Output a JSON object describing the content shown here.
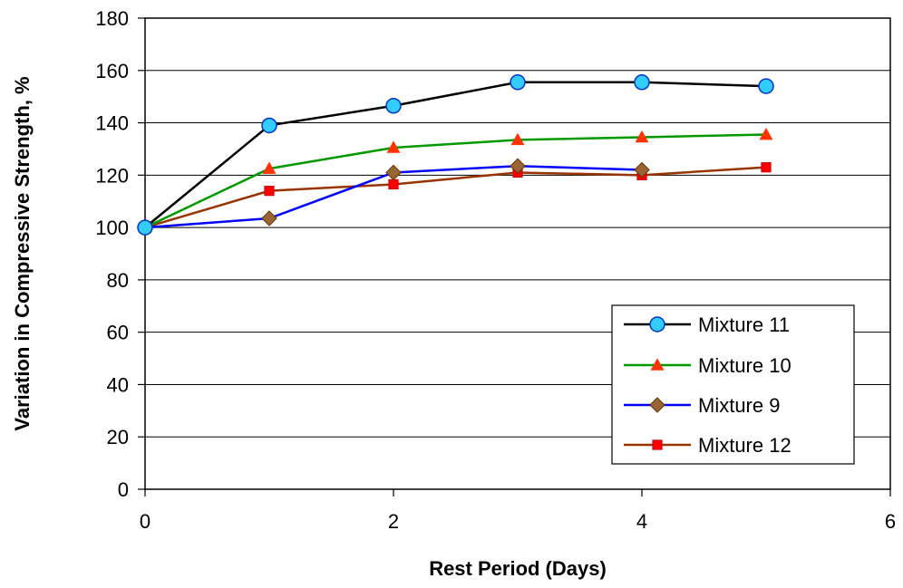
{
  "chart_data": {
    "type": "line",
    "xlabel": "Rest Period (Days)",
    "ylabel": "Variation in Compressive Strength, %",
    "xlim": [
      0,
      6
    ],
    "ylim": [
      0,
      180
    ],
    "xticks": [
      0,
      2,
      4,
      6
    ],
    "yticks": [
      0,
      20,
      40,
      60,
      80,
      100,
      120,
      140,
      160,
      180
    ],
    "grid": "horizontal",
    "legend_position": "bottom-right",
    "series": [
      {
        "name": "Mixture 11",
        "color": "#000000",
        "marker": "circle",
        "marker_color": "#33ccff",
        "marker_edge": "#0033cc",
        "x": [
          0,
          1,
          2,
          3,
          4,
          5
        ],
        "y": [
          100,
          139,
          146.5,
          155.5,
          155.5,
          154
        ]
      },
      {
        "name": "Mixture 10",
        "color": "#009900",
        "marker": "triangle",
        "marker_color": "#ff3300",
        "marker_edge": "#ff3300",
        "x": [
          0,
          1,
          2,
          3,
          4,
          5
        ],
        "y": [
          100,
          122.5,
          130.5,
          133.5,
          134.5,
          135.5
        ]
      },
      {
        "name": "Mixture 9",
        "color": "#0000ff",
        "marker": "diamond",
        "marker_color": "#996633",
        "marker_edge": "#663300",
        "x": [
          0,
          1,
          2,
          3,
          4,
          5
        ],
        "y": [
          100,
          103.5,
          121,
          123.5,
          122,
          null
        ]
      },
      {
        "name": "Mixture 12",
        "color": "#993300",
        "marker": "square",
        "marker_color": "#ff0000",
        "marker_edge": "#cc0000",
        "x": [
          0,
          1,
          2,
          3,
          4,
          5
        ],
        "y": [
          100,
          114,
          116.5,
          121,
          120,
          123
        ]
      }
    ]
  }
}
